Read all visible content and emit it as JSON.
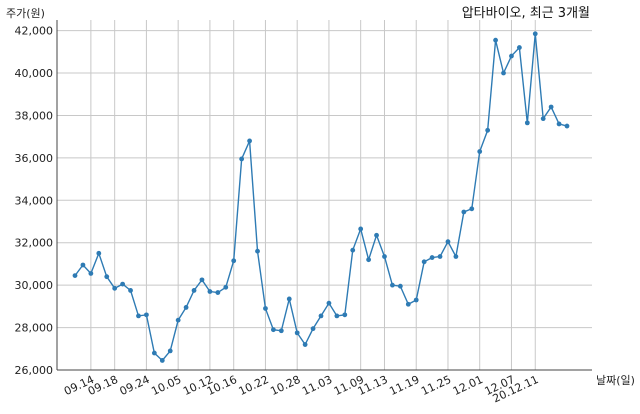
{
  "chart_data": {
    "type": "line",
    "title": "압타바이오, 최근 3개월",
    "ylabel": "주가(원)",
    "xlabel": "날짜(일)",
    "ylim": [
      26000,
      42500
    ],
    "yticks": [
      26000,
      28000,
      30000,
      32000,
      34000,
      36000,
      38000,
      40000,
      42000
    ],
    "ytick_labels": [
      "26,000",
      "28,000",
      "30,000",
      "32,000",
      "34,000",
      "36,000",
      "38,000",
      "40,000",
      "42,000"
    ],
    "xtick_labels": [
      "09.14",
      "09.18",
      "09.24",
      "10.05",
      "10.12",
      "10.16",
      "10.22",
      "10.28",
      "11.03",
      "11.09",
      "11.13",
      "11.19",
      "11.25",
      "12.01",
      "12.07",
      "20.12.11"
    ],
    "xtick_indices": [
      2,
      5,
      9,
      13,
      17,
      20,
      24,
      28,
      32,
      36,
      39,
      43,
      47,
      51,
      55,
      58
    ],
    "grid": true,
    "color": "#2e7bb4",
    "values": [
      30450,
      30950,
      30550,
      31500,
      30400,
      29850,
      30050,
      29750,
      28550,
      28600,
      26800,
      26450,
      26900,
      28350,
      28950,
      29750,
      30250,
      29700,
      29650,
      29900,
      31150,
      35950,
      36800,
      31600,
      28900,
      27900,
      27850,
      29350,
      27750,
      27200,
      27950,
      28550,
      29150,
      28550,
      28600,
      31650,
      32650,
      31200,
      32350,
      31350,
      30000,
      29950,
      29100,
      29300,
      31100,
      31300,
      31350,
      32050,
      31350,
      33450,
      33600,
      36300,
      37300,
      41550,
      40000,
      40800,
      41200,
      37650,
      41850,
      37850,
      38400,
      37600,
      37500
    ]
  }
}
